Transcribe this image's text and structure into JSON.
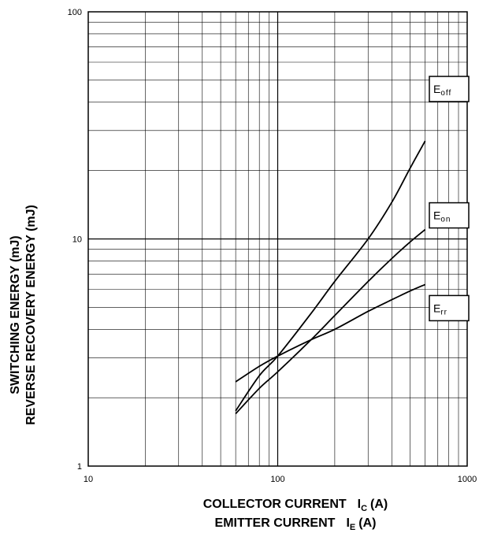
{
  "chart_data": {
    "type": "line",
    "x_scale": "log",
    "y_scale": "log",
    "xlim": [
      10,
      1000
    ],
    "ylim": [
      1,
      100
    ],
    "grid": true,
    "x_ticks": [
      {
        "value": 10,
        "label": "10"
      },
      {
        "value": 100,
        "label": "100"
      },
      {
        "value": 1000,
        "label": "1000"
      }
    ],
    "y_ticks": [
      {
        "value": 1,
        "label": "1"
      },
      {
        "value": 10,
        "label": "10"
      },
      {
        "value": 100,
        "label": "100"
      }
    ],
    "ylabel_lines": [
      "SWITCHING ENERGY (mJ)",
      "REVERSE RECOVERY ENERGY (mJ)"
    ],
    "xlabel_lines": [
      {
        "text": "COLLECTOR CURRENT",
        "symbol": "I",
        "subscript": "C",
        "unit": "(A)"
      },
      {
        "text": "EMITTER CURRENT",
        "symbol": "I",
        "subscript": "E",
        "unit": "(A)"
      }
    ],
    "series": [
      {
        "name": "E",
        "subscript": "off",
        "color": "#000000",
        "x": [
          60,
          80,
          100,
          150,
          200,
          300,
          400,
          500,
          600
        ],
        "y": [
          1.75,
          2.5,
          3.05,
          4.7,
          6.5,
          10.0,
          14.5,
          20.5,
          27.0
        ]
      },
      {
        "name": "E",
        "subscript": "on",
        "color": "#000000",
        "x": [
          60,
          80,
          100,
          150,
          200,
          300,
          400,
          500,
          600
        ],
        "y": [
          1.7,
          2.2,
          2.6,
          3.6,
          4.6,
          6.5,
          8.2,
          9.7,
          11.0
        ]
      },
      {
        "name": "E",
        "subscript": "rr",
        "color": "#000000",
        "x": [
          60,
          80,
          100,
          150,
          200,
          300,
          400,
          500,
          600
        ],
        "y": [
          2.35,
          2.75,
          3.05,
          3.6,
          4.0,
          4.8,
          5.4,
          5.9,
          6.3
        ]
      }
    ]
  }
}
